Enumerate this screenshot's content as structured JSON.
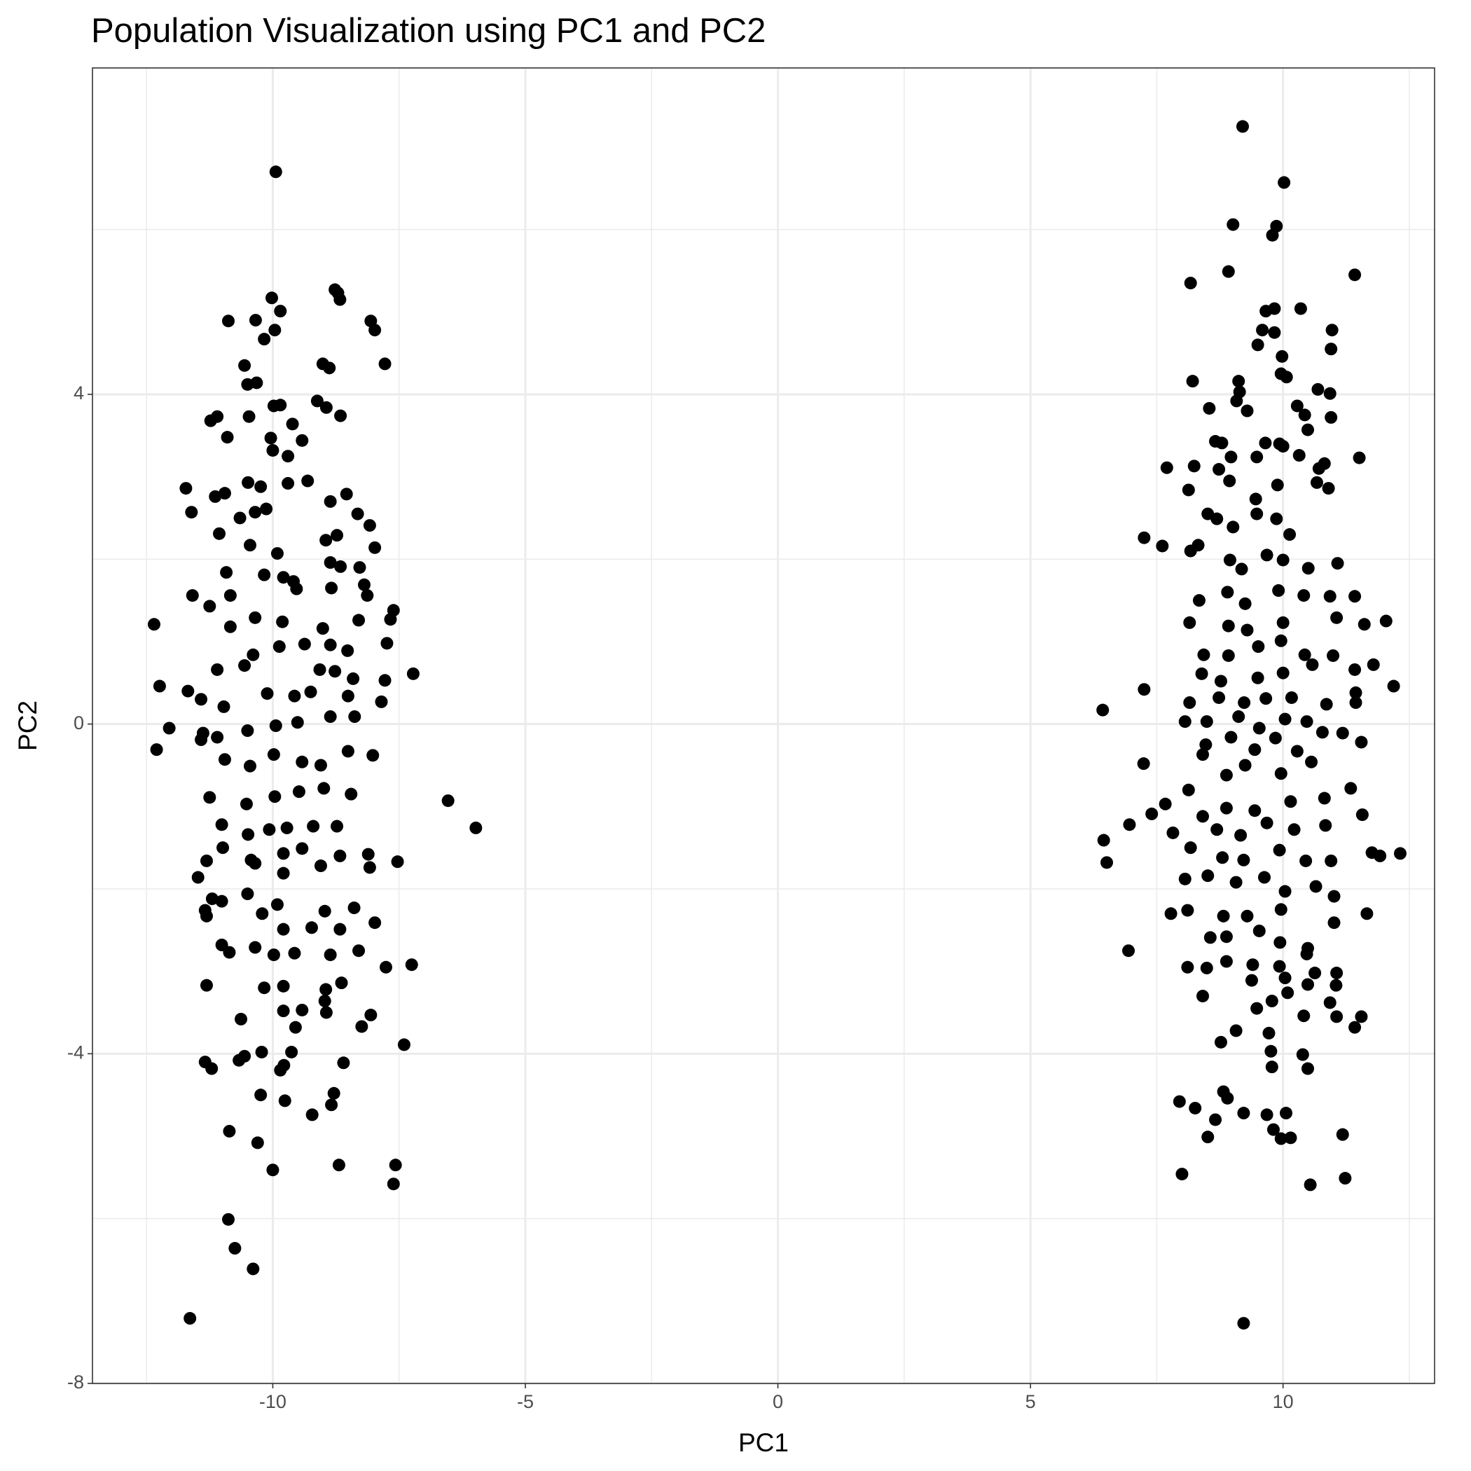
{
  "chart_data": {
    "type": "scatter",
    "title": "Population Visualization using PC1 and PC2",
    "x_label": "PC1",
    "y_label": "PC2",
    "xlim": [
      -13.57,
      13.0
    ],
    "ylim": [
      -8,
      7.96
    ],
    "xticks": [
      -10,
      -5,
      0,
      5,
      10
    ],
    "yticks": [
      -8,
      -4,
      0,
      4
    ],
    "x_minor_grid": [
      -12.5,
      -7.5,
      -2.5,
      2.5,
      7.5,
      12.5
    ],
    "y_minor_grid": [
      -6,
      -2,
      2,
      6
    ],
    "grid": true,
    "color": "#000000",
    "x": [
      -9.94,
      -8.77,
      -8.71,
      -8.67,
      -10.02,
      -9.85,
      -10.88,
      -10.34,
      -9.96,
      -8.06,
      -7.98,
      -10.17,
      -10.56,
      -9.01,
      -8.88,
      -7.78,
      -10.5,
      -10.32,
      -9.12,
      -9.98,
      -9.85,
      -11.23,
      -11.1,
      -10.47,
      -8.94,
      -8.66,
      -9.61,
      -10.9,
      -10.04,
      -9.42,
      -10.0,
      -9.7,
      -11.72,
      -11.61,
      -10.49,
      -10.24,
      -9.7,
      -9.31,
      -8.86,
      -8.54,
      -11.14,
      -10.95,
      -8.32,
      -8.08,
      -10.65,
      -10.35,
      -10.13,
      -11.06,
      -10.45,
      -8.95,
      -8.73,
      -7.98,
      -9.91,
      -10.92,
      -10.17,
      -9.79,
      -8.86,
      -8.66,
      -8.28,
      -8.19,
      -11.59,
      -11.25,
      -10.84,
      -9.59,
      -9.53,
      -8.84,
      -8.13,
      -7.61,
      -7.67,
      -12.35,
      -10.35,
      -9.81,
      -10.84,
      -8.3,
      -9.01,
      -7.74,
      -9.87,
      -9.37,
      -8.86,
      -8.52,
      -10.39,
      -7.22,
      -12.24,
      -11.68,
      -11.1,
      -10.56,
      -9.07,
      -8.77,
      -8.41,
      -7.78,
      -11.42,
      -10.97,
      -10.11,
      -9.57,
      -9.25,
      -8.51,
      -7.85,
      -12.05,
      -12.3,
      -11.38,
      -11.1,
      -10.5,
      -9.94,
      -9.51,
      -8.86,
      -8.38,
      -11.42,
      -10.95,
      -10.45,
      -9.98,
      -9.42,
      -9.05,
      -8.51,
      -8.02,
      -11.25,
      -10.52,
      -9.96,
      -9.48,
      -8.99,
      -8.45,
      -6.53,
      -5.98,
      -11.01,
      -10.49,
      -10.07,
      -9.72,
      -9.2,
      -8.73,
      -10.99,
      -10.43,
      -9.79,
      -9.42,
      -8.67,
      -8.11,
      -7.53,
      -8.08,
      -11.48,
      -11.31,
      -10.35,
      -9.79,
      -9.05,
      -11.2,
      -11.01,
      -10.5,
      -9.91,
      -8.97,
      -8.39,
      -11.34,
      -11.31,
      -10.21,
      -9.79,
      -9.23,
      -8.67,
      -7.98,
      -11.01,
      -10.86,
      -10.35,
      -9.98,
      -9.57,
      -8.86,
      -8.3,
      -11.31,
      -10.17,
      -9.79,
      -8.95,
      -8.64,
      -7.76,
      -7.25,
      -9.79,
      -9.42,
      -8.97,
      -8.94,
      -10.63,
      -8.24,
      -8.06,
      -9.55,
      -7.4,
      -10.22,
      -9.63,
      -10.67,
      -10.56,
      -8.6,
      -11.34,
      -11.21,
      -9.78,
      -9.85,
      -10.24,
      -9.76,
      -8.79,
      -8.84,
      -9.22,
      -10.86,
      -10.3,
      -8.69,
      -7.57,
      -7.61,
      -10.0,
      -10.88,
      -10.75,
      -10.39,
      -11.64,
      9.2,
      10.02,
      9.01,
      9.87,
      9.79,
      8.92,
      8.17,
      11.42,
      9.66,
      9.83,
      10.35,
      10.97,
      10.95,
      9.59,
      9.83,
      9.98,
      9.5,
      8.21,
      9.12,
      9.14,
      9.96,
      10.07,
      10.69,
      10.93,
      10.95,
      8.54,
      9.08,
      9.29,
      10.28,
      10.43,
      9.65,
      9.93,
      10.49,
      8.66,
      8.79,
      9.48,
      10.0,
      7.7,
      8.24,
      8.73,
      8.97,
      10.32,
      10.71,
      10.82,
      11.51,
      8.13,
      8.94,
      9.46,
      9.89,
      10.67,
      10.9,
      7.25,
      7.61,
      8.51,
      8.69,
      9.01,
      9.48,
      9.87,
      10.13,
      8.17,
      8.32,
      8.95,
      9.18,
      9.68,
      10.0,
      10.5,
      11.08,
      8.34,
      8.9,
      9.25,
      9.91,
      10.41,
      10.93,
      11.42,
      8.15,
      8.92,
      9.29,
      10.0,
      11.06,
      11.61,
      12.04,
      8.43,
      8.92,
      9.51,
      9.96,
      10.43,
      10.99,
      8.39,
      8.77,
      9.5,
      10.0,
      10.58,
      11.42,
      11.79,
      12.19,
      6.43,
      7.25,
      8.15,
      8.73,
      9.23,
      9.66,
      10.17,
      10.86,
      11.44,
      8.06,
      8.49,
      9.12,
      9.53,
      10.04,
      10.47,
      11.18,
      11.44,
      8.47,
      8.97,
      9.44,
      9.85,
      10.28,
      10.78,
      7.24,
      8.13,
      8.41,
      8.88,
      9.25,
      9.96,
      10.56,
      11.55,
      7.67,
      7.4,
      8.41,
      8.88,
      9.44,
      10.15,
      10.82,
      11.34,
      6.96,
      6.45,
      6.51,
      7.82,
      8.69,
      9.16,
      9.68,
      10.22,
      10.84,
      11.57,
      8.17,
      8.8,
      9.22,
      9.93,
      10.45,
      10.95,
      11.76,
      12.32,
      11.92,
      8.06,
      8.51,
      9.07,
      9.63,
      10.04,
      10.65,
      8.11,
      8.82,
      9.29,
      9.96,
      11.01,
      7.78,
      11.66,
      8.56,
      8.88,
      9.53,
      9.94,
      10.47,
      11.01,
      6.94,
      8.11,
      8.49,
      8.88,
      9.4,
      9.93,
      10.49,
      11.06,
      8.41,
      9.38,
      10.04,
      10.49,
      10.63,
      11.05,
      9.48,
      9.78,
      10.09,
      10.41,
      10.93,
      11.55,
      9.07,
      9.72,
      11.42,
      11.06,
      8.77,
      9.76,
      10.39,
      10.49,
      9.78,
      7.95,
      8.26,
      8.82,
      8.9,
      8.66,
      9.22,
      9.68,
      10.06,
      9.81,
      9.96,
      10.15,
      8.51,
      11.18,
      8.0,
      10.54,
      11.23,
      9.22
    ],
    "values": [
      6.7,
      5.27,
      5.23,
      5.15,
      5.17,
      5.01,
      4.89,
      4.9,
      4.78,
      4.89,
      4.78,
      4.67,
      4.35,
      4.37,
      4.32,
      4.37,
      4.12,
      4.14,
      3.92,
      3.86,
      3.87,
      3.68,
      3.73,
      3.73,
      3.84,
      3.74,
      3.64,
      3.48,
      3.47,
      3.44,
      3.32,
      3.25,
      2.86,
      2.57,
      2.93,
      2.88,
      2.92,
      2.95,
      2.7,
      2.79,
      2.76,
      2.8,
      2.55,
      2.41,
      2.5,
      2.57,
      2.61,
      2.31,
      2.17,
      2.23,
      2.29,
      2.14,
      2.07,
      1.84,
      1.81,
      1.78,
      1.96,
      1.91,
      1.9,
      1.69,
      1.56,
      1.43,
      1.56,
      1.73,
      1.64,
      1.65,
      1.56,
      1.38,
      1.27,
      1.21,
      1.29,
      1.24,
      1.18,
      1.26,
      1.16,
      0.98,
      0.94,
      0.97,
      0.96,
      0.89,
      0.84,
      0.61,
      0.46,
      0.4,
      0.66,
      0.71,
      0.66,
      0.64,
      0.55,
      0.53,
      0.3,
      0.21,
      0.37,
      0.34,
      0.39,
      0.34,
      0.27,
      -0.05,
      -0.31,
      -0.11,
      -0.16,
      -0.08,
      -0.02,
      0.02,
      0.09,
      0.09,
      -0.19,
      -0.43,
      -0.51,
      -0.37,
      -0.46,
      -0.5,
      -0.33,
      -0.38,
      -0.89,
      -0.97,
      -0.88,
      -0.82,
      -0.78,
      -0.85,
      -0.93,
      -1.26,
      -1.22,
      -1.34,
      -1.28,
      -1.26,
      -1.24,
      -1.24,
      -1.5,
      -1.65,
      -1.57,
      -1.51,
      -1.6,
      -1.58,
      -1.67,
      -1.74,
      -1.86,
      -1.66,
      -1.69,
      -1.81,
      -1.72,
      -2.12,
      -2.15,
      -2.06,
      -2.19,
      -2.27,
      -2.23,
      -2.26,
      -2.33,
      -2.3,
      -2.49,
      -2.47,
      -2.49,
      -2.41,
      -2.68,
      -2.77,
      -2.71,
      -2.8,
      -2.78,
      -2.8,
      -2.75,
      -3.17,
      -3.2,
      -3.18,
      -3.22,
      -3.14,
      -2.95,
      -2.92,
      -3.48,
      -3.47,
      -3.36,
      -3.5,
      -3.58,
      -3.67,
      -3.53,
      -3.68,
      -3.89,
      -3.98,
      -3.98,
      -4.08,
      -4.03,
      -4.11,
      -4.1,
      -4.18,
      -4.14,
      -4.2,
      -4.5,
      -4.57,
      -4.48,
      -4.62,
      -4.74,
      -4.94,
      -5.08,
      -5.35,
      -5.35,
      -5.58,
      -5.41,
      -6.01,
      -6.36,
      -6.61,
      -7.21,
      7.25,
      6.57,
      6.06,
      6.04,
      5.93,
      5.49,
      5.35,
      5.45,
      5.01,
      5.04,
      5.04,
      4.78,
      4.55,
      4.78,
      4.75,
      4.46,
      4.6,
      4.16,
      4.16,
      4.03,
      4.25,
      4.21,
      4.06,
      4.01,
      3.72,
      3.83,
      3.92,
      3.8,
      3.86,
      3.75,
      3.41,
      3.4,
      3.57,
      3.43,
      3.41,
      3.24,
      3.37,
      3.11,
      3.13,
      3.09,
      3.24,
      3.26,
      3.1,
      3.16,
      3.23,
      2.84,
      2.95,
      2.73,
      2.9,
      2.93,
      2.86,
      2.26,
      2.16,
      2.55,
      2.49,
      2.39,
      2.55,
      2.49,
      2.3,
      2.1,
      2.17,
      1.99,
      1.88,
      2.05,
      1.99,
      1.89,
      1.95,
      1.5,
      1.6,
      1.46,
      1.62,
      1.56,
      1.55,
      1.55,
      1.23,
      1.19,
      1.14,
      1.23,
      1.29,
      1.21,
      1.25,
      0.84,
      0.83,
      0.94,
      1.01,
      0.84,
      0.83,
      0.61,
      0.52,
      0.56,
      0.62,
      0.72,
      0.66,
      0.72,
      0.46,
      0.17,
      0.42,
      0.26,
      0.32,
      0.26,
      0.31,
      0.32,
      0.24,
      0.38,
      0.03,
      0.03,
      0.09,
      -0.05,
      0.06,
      0.03,
      -0.11,
      0.26,
      -0.25,
      -0.16,
      -0.31,
      -0.17,
      -0.33,
      -0.1,
      -0.48,
      -0.8,
      -0.37,
      -0.62,
      -0.5,
      -0.6,
      -0.46,
      -0.22,
      -0.97,
      -1.09,
      -1.12,
      -1.02,
      -1.05,
      -0.94,
      -0.9,
      -0.78,
      -1.22,
      -1.41,
      -1.68,
      -1.32,
      -1.28,
      -1.35,
      -1.2,
      -1.28,
      -1.23,
      -1.1,
      -1.5,
      -1.62,
      -1.65,
      -1.53,
      -1.66,
      -1.66,
      -1.56,
      -1.57,
      -1.6,
      -1.88,
      -1.84,
      -1.92,
      -1.86,
      -2.03,
      -1.97,
      -2.26,
      -2.33,
      -2.33,
      -2.25,
      -2.09,
      -2.3,
      -2.3,
      -2.59,
      -2.58,
      -2.51,
      -2.65,
      -2.79,
      -2.41,
      -2.75,
      -2.95,
      -2.96,
      -2.88,
      -2.92,
      -2.94,
      -2.72,
      -3.02,
      -3.3,
      -3.11,
      -3.08,
      -3.16,
      -3.02,
      -3.17,
      -3.45,
      -3.36,
      -3.26,
      -3.54,
      -3.38,
      -3.55,
      -3.72,
      -3.75,
      -3.68,
      -3.55,
      -3.86,
      -3.97,
      -4.01,
      -4.18,
      -4.16,
      -4.58,
      -4.66,
      -4.46,
      -4.54,
      -4.8,
      -4.72,
      -4.74,
      -4.72,
      -4.92,
      -5.03,
      -5.02,
      -5.01,
      -4.98,
      -5.46,
      -5.59,
      -5.51,
      -7.27
    ]
  }
}
